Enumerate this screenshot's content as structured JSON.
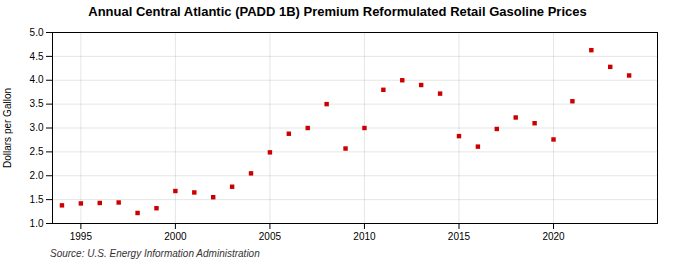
{
  "chart_data": {
    "type": "scatter",
    "title": "Annual Central Atlantic (PADD 1B) Premium Reformulated Retail Gasoline Prices",
    "ylabel": "Dollars per Gallon",
    "source": "Source: U.S. Energy Information Administration",
    "x": [
      1994,
      1995,
      1996,
      1997,
      1998,
      1999,
      2000,
      2001,
      2002,
      2003,
      2004,
      2005,
      2006,
      2007,
      2008,
      2009,
      2010,
      2011,
      2012,
      2013,
      2014,
      2015,
      2016,
      2017,
      2018,
      2019,
      2020,
      2021,
      2022,
      2023,
      2024
    ],
    "values": [
      1.38,
      1.42,
      1.43,
      1.44,
      1.22,
      1.32,
      1.68,
      1.65,
      1.55,
      1.77,
      2.05,
      2.49,
      2.88,
      3.0,
      3.5,
      2.57,
      3.0,
      3.8,
      4.0,
      3.9,
      3.72,
      2.83,
      2.61,
      2.98,
      3.22,
      3.1,
      2.76,
      3.56,
      4.63,
      4.28,
      4.1
    ],
    "color": "#cc0000",
    "marker": "square",
    "xlim": [
      1993.5,
      2025.5
    ],
    "xticks": [
      1995,
      2000,
      2005,
      2010,
      2015,
      2020
    ],
    "ylim": [
      1.0,
      5.0
    ],
    "yticks": [
      {
        "value": 1.0,
        "label": "1.0"
      },
      1.5,
      {
        "value": 2.0,
        "label": "2.0"
      },
      2.5,
      {
        "value": 3.0,
        "label": "3.0"
      },
      3.5,
      {
        "value": 4.0,
        "label": "4.0"
      },
      4.5,
      {
        "value": 5.0,
        "label": "5.0"
      }
    ],
    "grid": true
  }
}
